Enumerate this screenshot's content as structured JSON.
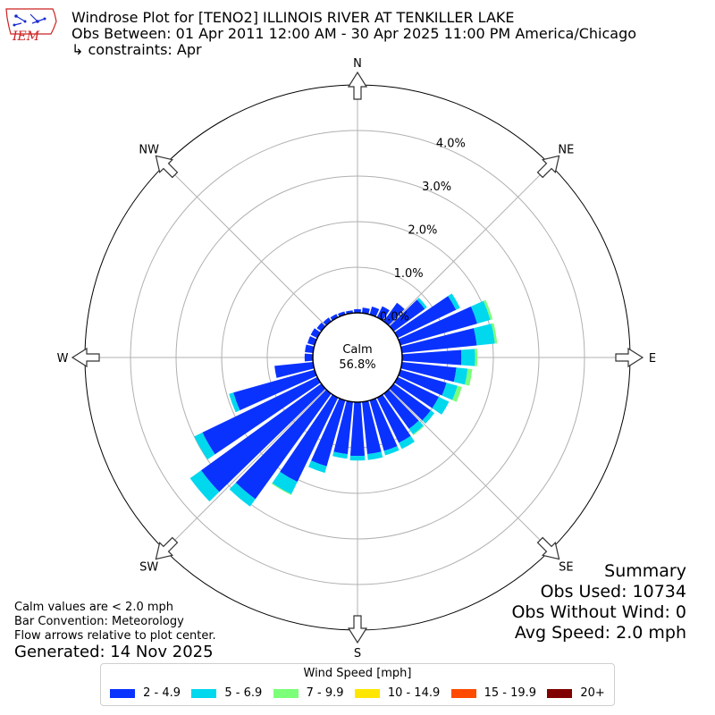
{
  "title": {
    "line1": "Windrose Plot for [TENO2] ILLINOIS RIVER  AT TENKILLER LAKE",
    "line2": "Obs Between: 01 Apr 2011 12:00 AM - 30 Apr 2025 11:00 PM America/Chicago",
    "line3": "↳ constraints: Apr"
  },
  "logo": {
    "text": "IEM",
    "color": "#cc2222",
    "icon": "iowa-state-outline-icon"
  },
  "summary": {
    "heading": "Summary",
    "obs_used": "Obs Used: 10734",
    "obs_without_wind": "Obs Without Wind: 0",
    "avg_speed": "Avg Speed: 2.0 mph"
  },
  "notes": {
    "calm": "Calm values are < 2.0 mph",
    "convention": "Bar Convention: Meteorology",
    "flow": "Flow arrows relative to plot center."
  },
  "generated": "Generated: 14 Nov 2025",
  "chart_data": {
    "type": "windrose",
    "calm_label": "Calm",
    "calm_value_text": "56.8%",
    "calm_percent": 56.8,
    "radial_ticks": [
      0,
      1,
      2,
      3,
      4
    ],
    "radial_tick_labels": [
      "0.0%",
      "1.0%",
      "2.0%",
      "3.0%",
      "4.0%"
    ],
    "rmax": 5.0,
    "direction_labels": [
      "N",
      "NE",
      "E",
      "SE",
      "S",
      "SW",
      "W",
      "NW"
    ],
    "direction_angles": [
      0,
      45,
      90,
      135,
      180,
      225,
      270,
      315
    ],
    "legend_title": "Wind Speed [mph]",
    "bins": [
      {
        "label": "2 - 4.9",
        "color": "#0a32ff"
      },
      {
        "label": "5 - 6.9",
        "color": "#00d8ee"
      },
      {
        "label": "7 - 9.9",
        "color": "#7cff79"
      },
      {
        "label": "10 - 14.9",
        "color": "#ffe600"
      },
      {
        "label": "15 - 19.9",
        "color": "#ff4a00"
      },
      {
        "label": "20+",
        "color": "#800000"
      }
    ],
    "sector_width_deg": 10,
    "directions_deg": [
      0,
      10,
      20,
      30,
      40,
      50,
      60,
      70,
      80,
      90,
      100,
      110,
      120,
      130,
      140,
      150,
      160,
      170,
      180,
      190,
      200,
      210,
      220,
      230,
      240,
      250,
      260,
      270,
      280,
      290,
      300,
      310,
      320,
      330,
      340,
      350
    ],
    "cumulative_percent": [
      [
        0.08,
        0.08,
        0.08,
        0.08,
        0.08,
        0.08
      ],
      [
        0.12,
        0.12,
        0.12,
        0.12,
        0.12,
        0.12
      ],
      [
        0.18,
        0.18,
        0.18,
        0.18,
        0.18,
        0.18
      ],
      [
        0.27,
        0.27,
        0.27,
        0.27,
        0.27,
        0.27
      ],
      [
        0.5,
        0.5,
        0.5,
        0.5,
        0.5,
        0.5
      ],
      [
        0.84,
        0.9,
        0.9,
        0.9,
        0.9,
        0.9
      ],
      [
        1.42,
        1.52,
        1.52,
        1.52,
        1.52,
        1.52
      ],
      [
        1.75,
        2.05,
        2.1,
        2.1,
        2.1,
        2.1
      ],
      [
        1.65,
        2.05,
        2.1,
        2.1,
        2.1,
        2.1
      ],
      [
        1.3,
        1.6,
        1.65,
        1.65,
        1.65,
        1.65
      ],
      [
        1.2,
        1.45,
        1.55,
        1.55,
        1.55,
        1.55
      ],
      [
        1.05,
        1.3,
        1.4,
        1.4,
        1.4,
        1.4
      ],
      [
        1.0,
        1.25,
        1.25,
        1.25,
        1.25,
        1.25
      ],
      [
        1.0,
        1.1,
        1.1,
        1.1,
        1.1,
        1.1
      ],
      [
        0.95,
        1.1,
        1.12,
        1.12,
        1.12,
        1.12
      ],
      [
        1.1,
        1.25,
        1.25,
        1.25,
        1.25,
        1.25
      ],
      [
        1.15,
        1.25,
        1.25,
        1.25,
        1.25,
        1.25
      ],
      [
        1.15,
        1.28,
        1.28,
        1.28,
        1.28,
        1.28
      ],
      [
        1.18,
        1.28,
        1.28,
        1.28,
        1.28,
        1.28
      ],
      [
        1.15,
        1.25,
        1.25,
        1.25,
        1.25,
        1.25
      ],
      [
        1.5,
        1.65,
        1.65,
        1.65,
        1.65,
        1.65
      ],
      [
        2.05,
        2.35,
        2.37,
        2.37,
        2.37,
        2.37
      ],
      [
        2.85,
        3.05,
        3.05,
        3.05,
        3.05,
        3.05
      ],
      [
        3.25,
        3.55,
        3.55,
        3.55,
        3.55,
        3.55
      ],
      [
        2.8,
        3.0,
        3.0,
        3.0,
        3.0,
        3.0
      ],
      [
        1.85,
        1.95,
        1.95,
        1.95,
        1.95,
        1.95
      ],
      [
        0.85,
        0.85,
        0.85,
        0.85,
        0.85,
        0.85
      ],
      [
        0.18,
        0.18,
        0.18,
        0.18,
        0.18,
        0.18
      ],
      [
        0.18,
        0.18,
        0.18,
        0.18,
        0.18,
        0.18
      ],
      [
        0.16,
        0.16,
        0.16,
        0.16,
        0.16,
        0.16
      ],
      [
        0.16,
        0.16,
        0.16,
        0.16,
        0.16,
        0.16
      ],
      [
        0.12,
        0.12,
        0.12,
        0.12,
        0.12,
        0.12
      ],
      [
        0.1,
        0.1,
        0.1,
        0.1,
        0.1,
        0.1
      ],
      [
        0.08,
        0.08,
        0.08,
        0.08,
        0.08,
        0.08
      ],
      [
        0.07,
        0.07,
        0.07,
        0.07,
        0.07,
        0.07
      ],
      [
        0.06,
        0.06,
        0.06,
        0.06,
        0.06,
        0.06
      ]
    ]
  }
}
